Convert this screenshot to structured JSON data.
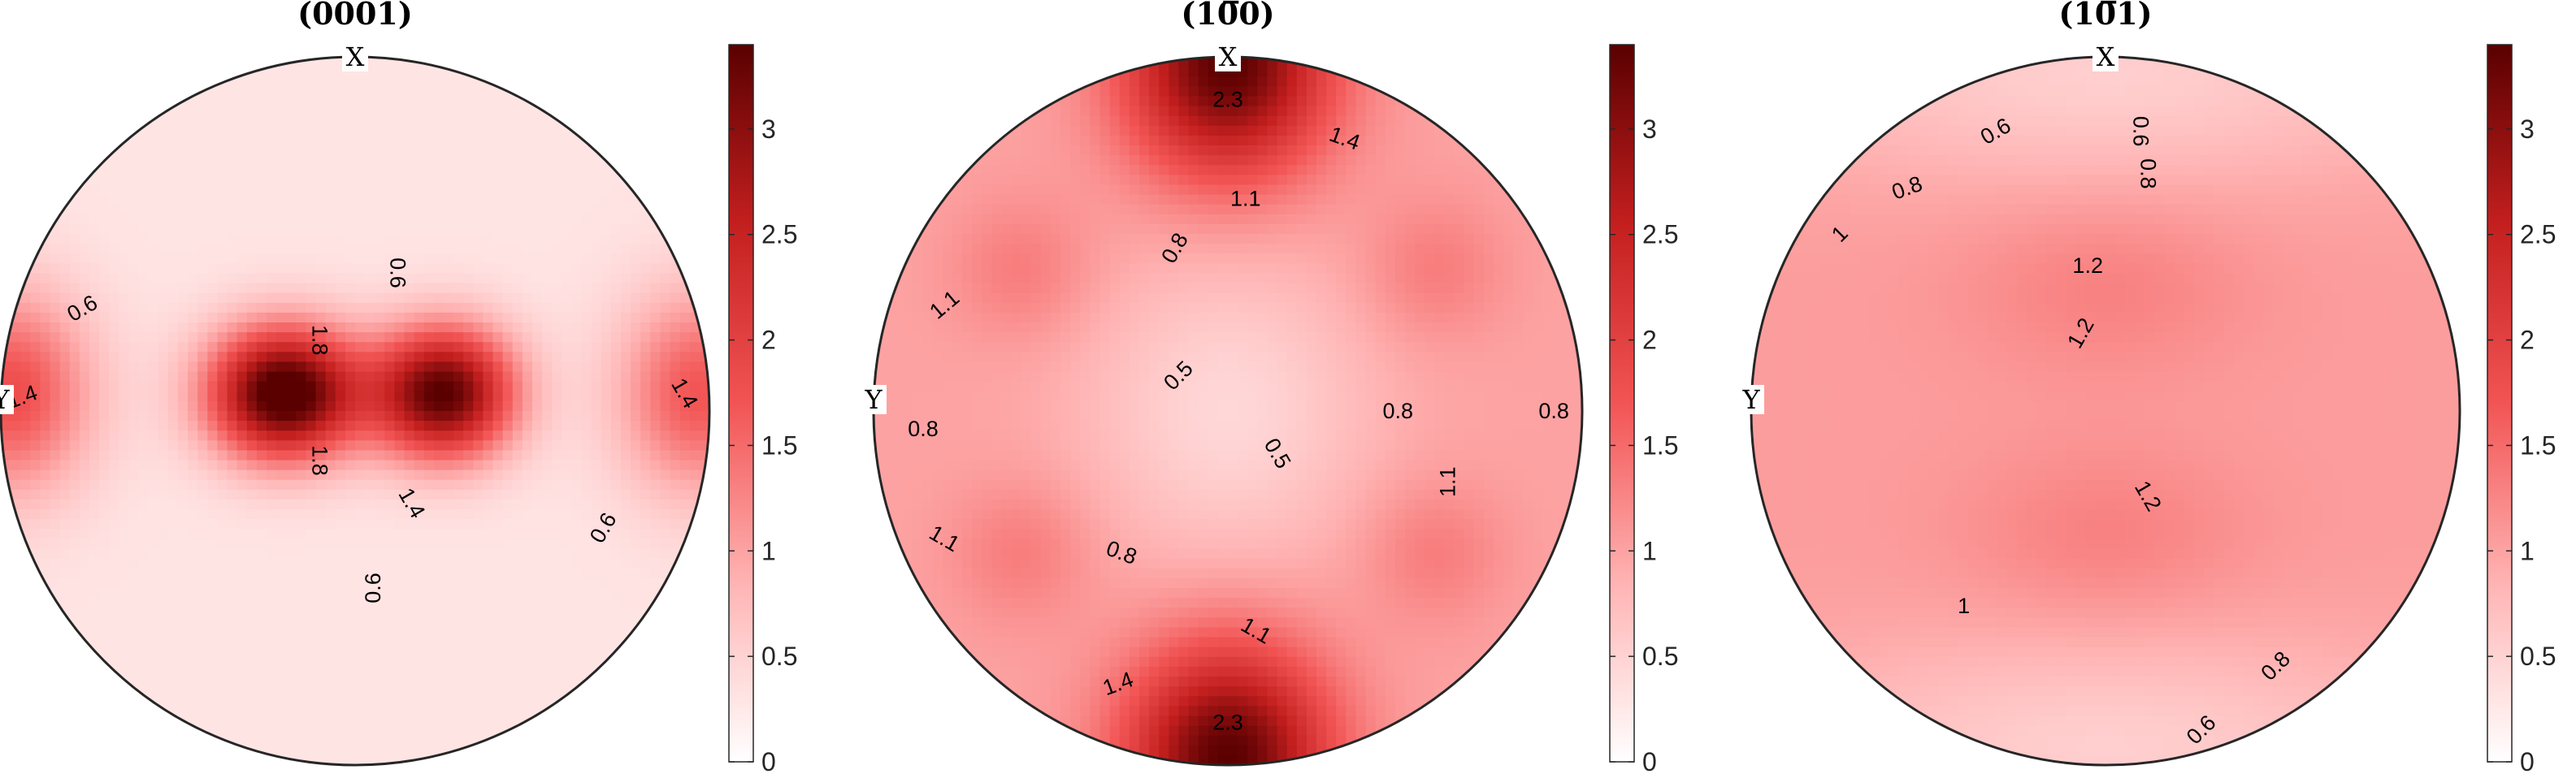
{
  "figure": {
    "type": "pole_figure",
    "colormap": [
      "#ffffff",
      "#ffb3b3",
      "#f25454",
      "#c41f1f",
      "#5a0000"
    ]
  },
  "chart_data": [
    {
      "type": "heatmap",
      "title": "(0001)",
      "axis_labels": {
        "top": "X",
        "left": "Y"
      },
      "colorbar": {
        "range": [
          0,
          3.4
        ],
        "ticks": [
          "0",
          "0.5",
          "1",
          "1.5",
          "2",
          "2.5",
          "3"
        ],
        "tick_values": [
          0,
          0.5,
          1,
          1.5,
          2,
          2.5,
          3
        ]
      },
      "max_value": 3.4,
      "background_value": 0.3,
      "peaks": [
        {
          "x": -0.2,
          "y": 0.05,
          "value": 3.4,
          "sx": 0.15,
          "sy": 0.13
        },
        {
          "x": 0.25,
          "y": 0.05,
          "value": 3.1,
          "sx": 0.14,
          "sy": 0.13
        },
        {
          "x": -0.97,
          "y": 0.05,
          "value": 1.5,
          "sx": 0.16,
          "sy": 0.2
        },
        {
          "x": 0.97,
          "y": 0.05,
          "value": 1.4,
          "sx": 0.16,
          "sy": 0.2
        }
      ],
      "contour_labels": [
        {
          "text": "0.6",
          "x": -0.77,
          "y": 0.29,
          "angle": -30
        },
        {
          "text": "1.4",
          "x": -0.94,
          "y": 0.04,
          "angle": -20
        },
        {
          "text": "0.6",
          "x": 0.05,
          "y": -0.5,
          "angle": -90
        },
        {
          "text": "0.6",
          "x": 0.7,
          "y": -0.33,
          "angle": -60
        },
        {
          "text": "1.4",
          "x": 0.93,
          "y": 0.05,
          "angle": 60
        },
        {
          "text": "0.6",
          "x": 0.12,
          "y": 0.39,
          "angle": 90
        },
        {
          "text": "1.8",
          "x": -0.1,
          "y": 0.2,
          "angle": 90
        },
        {
          "text": "1.8",
          "x": -0.1,
          "y": -0.14,
          "angle": 90
        },
        {
          "text": "1.4",
          "x": 0.16,
          "y": -0.26,
          "angle": 60
        }
      ]
    },
    {
      "type": "heatmap",
      "title": "(10̅0)",
      "axis_labels": {
        "top": "X",
        "left": "Y"
      },
      "colorbar": {
        "range": [
          0,
          3.4
        ],
        "ticks": [
          "0",
          "0.5",
          "1",
          "1.5",
          "2",
          "2.5",
          "3"
        ],
        "tick_values": [
          0,
          0.5,
          1,
          1.5,
          2,
          2.5,
          3
        ]
      },
      "max_value": 3.4,
      "background_value": 1.0,
      "peaks": [
        {
          "x": 0.0,
          "y": 0.98,
          "value": 2.4,
          "sx": 0.2,
          "sy": 0.22
        },
        {
          "x": 0.0,
          "y": -0.98,
          "value": 2.4,
          "sx": 0.2,
          "sy": 0.22
        },
        {
          "x": -0.58,
          "y": 0.4,
          "value": 0.35,
          "sx": 0.14,
          "sy": 0.14
        },
        {
          "x": 0.58,
          "y": 0.4,
          "value": 0.35,
          "sx": 0.14,
          "sy": 0.14
        },
        {
          "x": -0.58,
          "y": -0.4,
          "value": 0.35,
          "sx": 0.14,
          "sy": 0.14
        },
        {
          "x": 0.58,
          "y": -0.4,
          "value": 0.35,
          "sx": 0.14,
          "sy": 0.14
        },
        {
          "x": 0.0,
          "y": 0.0,
          "value": -0.55,
          "sx": 0.28,
          "sy": 0.3
        }
      ],
      "contour_labels": [
        {
          "text": "2.3",
          "x": 0.0,
          "y": 0.88,
          "angle": 0
        },
        {
          "text": "1.4",
          "x": 0.33,
          "y": 0.77,
          "angle": 20
        },
        {
          "text": "1.1",
          "x": 0.05,
          "y": 0.6,
          "angle": 0
        },
        {
          "text": "0.8",
          "x": -0.15,
          "y": 0.46,
          "angle": -60
        },
        {
          "text": "1.1",
          "x": -0.8,
          "y": 0.3,
          "angle": -40
        },
        {
          "text": "0.8",
          "x": -0.86,
          "y": -0.05,
          "angle": 0
        },
        {
          "text": "0.8",
          "x": 0.92,
          "y": 0.0,
          "angle": 0
        },
        {
          "text": "0.5",
          "x": -0.14,
          "y": 0.1,
          "angle": -45
        },
        {
          "text": "0.5",
          "x": 0.14,
          "y": -0.12,
          "angle": 60
        },
        {
          "text": "0.8",
          "x": 0.48,
          "y": 0.0,
          "angle": 0
        },
        {
          "text": "1.1",
          "x": 0.62,
          "y": -0.2,
          "angle": -90
        },
        {
          "text": "1.1",
          "x": -0.8,
          "y": -0.36,
          "angle": 30
        },
        {
          "text": "0.8",
          "x": -0.3,
          "y": -0.4,
          "angle": 20
        },
        {
          "text": "1.1",
          "x": 0.08,
          "y": -0.62,
          "angle": 30
        },
        {
          "text": "1.4",
          "x": -0.31,
          "y": -0.77,
          "angle": -20
        },
        {
          "text": "2.3",
          "x": 0.0,
          "y": -0.88,
          "angle": 0
        }
      ]
    },
    {
      "type": "heatmap",
      "title": "(10̅1)",
      "axis_labels": {
        "top": "X",
        "left": "Y"
      },
      "colorbar": {
        "range": [
          0,
          3.4
        ],
        "ticks": [
          "0",
          "0.5",
          "1",
          "1.5",
          "2",
          "2.5",
          "3"
        ],
        "tick_values": [
          0,
          0.5,
          1,
          1.5,
          2,
          2.5,
          3
        ]
      },
      "max_value": 3.4,
      "background_value": 1.05,
      "peaks": [
        {
          "x": 0.0,
          "y": 0.35,
          "value": 0.25,
          "sx": 0.28,
          "sy": 0.17
        },
        {
          "x": 0.0,
          "y": -0.35,
          "value": 0.25,
          "sx": 0.28,
          "sy": 0.17
        },
        {
          "x": 0.0,
          "y": 0.95,
          "value": -0.5,
          "sx": 0.7,
          "sy": 0.22
        },
        {
          "x": 0.0,
          "y": -0.95,
          "value": -0.5,
          "sx": 0.7,
          "sy": 0.22
        }
      ],
      "contour_labels": [
        {
          "text": "0.6",
          "x": -0.31,
          "y": 0.79,
          "angle": -30
        },
        {
          "text": "0.6",
          "x": 0.1,
          "y": 0.79,
          "angle": 90
        },
        {
          "text": "0.8",
          "x": -0.56,
          "y": 0.63,
          "angle": -20
        },
        {
          "text": "0.8",
          "x": 0.12,
          "y": 0.67,
          "angle": 90
        },
        {
          "text": "1",
          "x": -0.75,
          "y": 0.5,
          "angle": -45
        },
        {
          "text": "1.2",
          "x": -0.05,
          "y": 0.41,
          "angle": 0
        },
        {
          "text": "1.2",
          "x": -0.07,
          "y": 0.22,
          "angle": -60
        },
        {
          "text": "1.2",
          "x": 0.12,
          "y": -0.24,
          "angle": 60
        },
        {
          "text": "1",
          "x": -0.4,
          "y": -0.55,
          "angle": 0
        },
        {
          "text": "0.8",
          "x": 0.48,
          "y": -0.72,
          "angle": -45
        },
        {
          "text": "0.6",
          "x": 0.27,
          "y": -0.9,
          "angle": -45
        }
      ]
    }
  ]
}
